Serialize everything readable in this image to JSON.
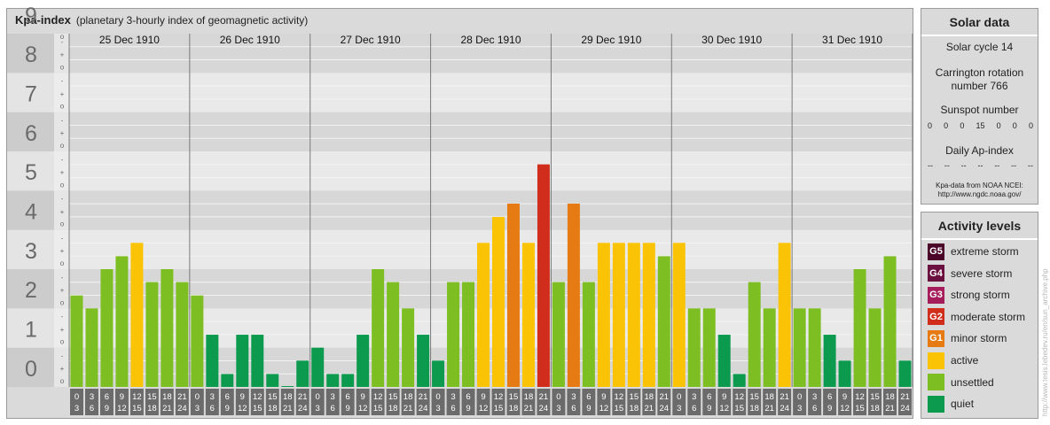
{
  "header": {
    "title": "Kpa-index",
    "subtitle": "(planetary 3-hourly index of geomagnetic activity)"
  },
  "chart_data": {
    "type": "bar",
    "ylim": [
      0,
      9
    ],
    "y_ticks": [
      "0",
      "1",
      "2",
      "3",
      "4",
      "5",
      "6",
      "7",
      "8",
      "9"
    ],
    "y_minor_marks": [
      "o",
      "+",
      "-"
    ],
    "days": [
      "25 Dec 1910",
      "26 Dec 1910",
      "27 Dec 1910",
      "28 Dec 1910",
      "29 Dec 1910",
      "30 Dec 1910",
      "31 Dec 1910"
    ],
    "interval_labels": [
      {
        "start": "0",
        "end": "3"
      },
      {
        "start": "3",
        "end": "6"
      },
      {
        "start": "6",
        "end": "9"
      },
      {
        "start": "9",
        "end": "12"
      },
      {
        "start": "12",
        "end": "15"
      },
      {
        "start": "15",
        "end": "18"
      },
      {
        "start": "18",
        "end": "21"
      },
      {
        "start": "21",
        "end": "24"
      }
    ],
    "values": [
      [
        2.33,
        2.0,
        3.0,
        3.33,
        3.67,
        2.67,
        3.0,
        2.67
      ],
      [
        2.33,
        1.33,
        0.33,
        1.33,
        1.33,
        0.33,
        0.0,
        0.67
      ],
      [
        1.0,
        0.33,
        0.33,
        1.33,
        3.0,
        2.67,
        2.0,
        1.33
      ],
      [
        0.67,
        2.67,
        2.67,
        3.67,
        4.33,
        4.67,
        3.67,
        5.67
      ],
      [
        2.67,
        4.67,
        2.67,
        3.67,
        3.67,
        3.67,
        3.67,
        3.33
      ],
      [
        3.67,
        2.0,
        2.0,
        1.33,
        0.33,
        2.67,
        2.0,
        3.67
      ],
      [
        2.0,
        2.0,
        1.33,
        0.67,
        3.0,
        2.0,
        3.33,
        0.67
      ]
    ],
    "levels": [
      {
        "max": 1.5,
        "color": "#0c9a4e"
      },
      {
        "max": 3.5,
        "color": "#7dbf22"
      },
      {
        "max": 4.5,
        "color": "#fac306"
      },
      {
        "max": 5.5,
        "color": "#e67b14"
      },
      {
        "max": 6.5,
        "color": "#d12d1c"
      },
      {
        "max": 7.5,
        "color": "#a51d5a"
      },
      {
        "max": 8.5,
        "color": "#6b1140"
      },
      {
        "max": 9.5,
        "color": "#4a0528"
      }
    ]
  },
  "solar": {
    "title": "Solar data",
    "cycle": "Solar cycle 14",
    "rotation_line1": "Carrington rotation",
    "rotation_line2": "number 766",
    "sunspot_title": "Sunspot number",
    "sunspot_values": [
      "0",
      "0",
      "0",
      "15",
      "0",
      "0",
      "0"
    ],
    "ap_title": "Daily Ap-index",
    "ap_values": [
      "--",
      "--",
      "--",
      "--",
      "--",
      "--",
      "--"
    ],
    "source_line1": "Kpa-data from NOAA NCEI:",
    "source_line2": "http://www.ngdc.noaa.gov/"
  },
  "activity": {
    "title": "Activity levels",
    "items": [
      {
        "code": "G5",
        "label": "extreme storm",
        "color": "#4a0528"
      },
      {
        "code": "G4",
        "label": "severe storm",
        "color": "#6b1140"
      },
      {
        "code": "G3",
        "label": "strong storm",
        "color": "#a51d5a"
      },
      {
        "code": "G2",
        "label": "moderate storm",
        "color": "#d12d1c"
      },
      {
        "code": "G1",
        "label": "minor storm",
        "color": "#e67b14"
      },
      {
        "code": "",
        "label": "active",
        "color": "#fac306"
      },
      {
        "code": "",
        "label": "unsettled",
        "color": "#7dbf22"
      },
      {
        "code": "",
        "label": "quiet",
        "color": "#0c9a4e"
      }
    ]
  },
  "credit": "http://www.tesis.lebedev.ru/en/sun_archive.php"
}
